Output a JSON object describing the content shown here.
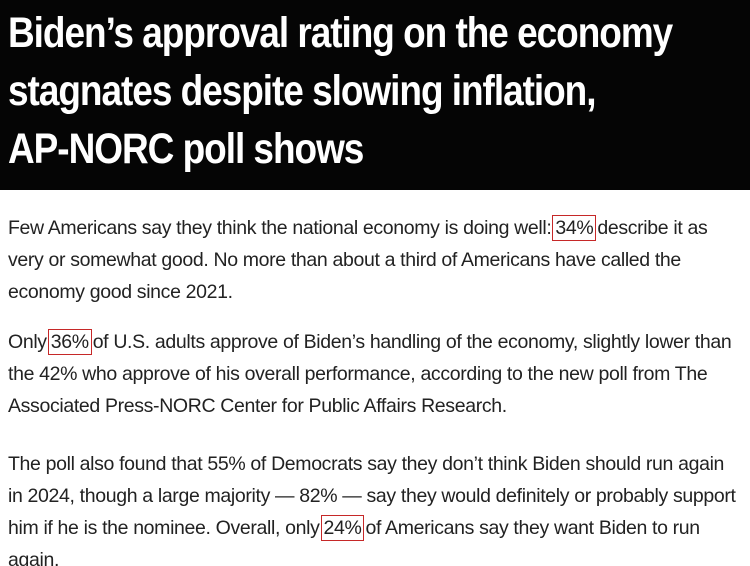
{
  "headline": {
    "lines": [
      "Biden’s approval rating on the economy",
      "stagnates despite slowing inflation,",
      "AP-NORC poll shows"
    ]
  },
  "article": {
    "paragraph_1": {
      "line_1_before": "Few Americans say they think the national economy is doing well:",
      "line_1_highlight": "34%",
      "line_1_after": "describe it as",
      "line_2": "very or somewhat good. No more than about a third of Americans have called the",
      "line_3": "economy good since 2021."
    },
    "paragraph_2": {
      "line_1_before": "Only",
      "line_1_highlight": "36%",
      "line_1_after": "of U.S. adults approve of Biden’s handling of the economy, slightly lower than",
      "line_2": "the 42% who approve of his overall performance, according to the new poll from The",
      "line_3": "Associated Press-NORC Center for Public Affairs Research."
    },
    "paragraph_3": {
      "line_1": "The poll also found that 55% of Democrats say they don’t think Biden should run again",
      "line_2": "in 2024, though a large majority — 82% — say they would definitely or probably support",
      "line_3_before": "him if he is the nominee. Overall, only",
      "line_3_highlight": "24%",
      "line_3_after": "of Americans say they want Biden to run",
      "line_4": "again."
    }
  },
  "colors": {
    "headline_background": "#050505",
    "headline_text": "#ffffff",
    "body_text": "#222222",
    "highlight_box": "#c62828"
  }
}
